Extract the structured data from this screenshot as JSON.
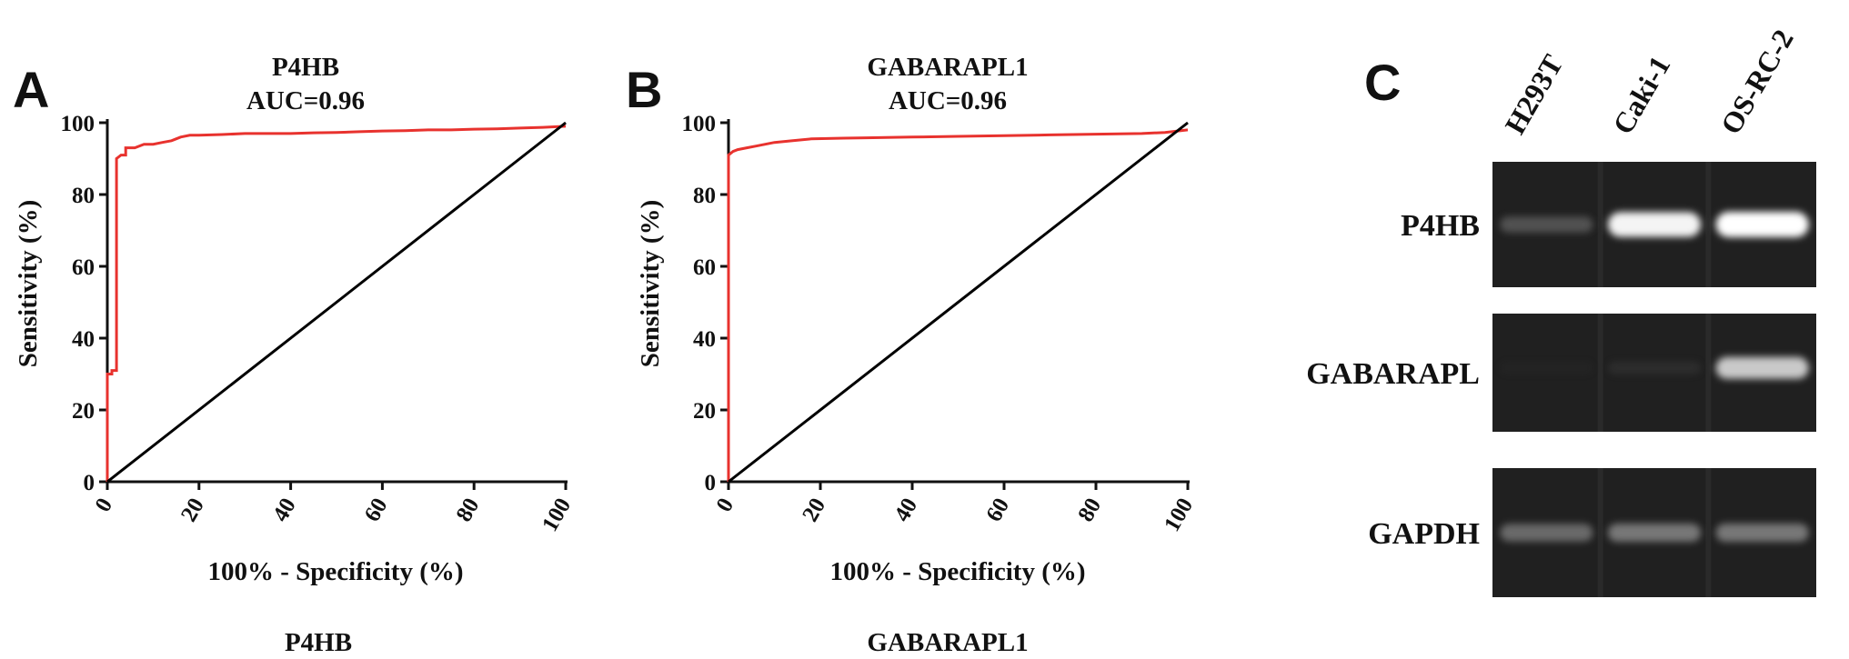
{
  "panels": {
    "a_letter": "A",
    "b_letter": "B",
    "c_letter": "C"
  },
  "chart_data": [
    {
      "type": "line",
      "title": "P4HB",
      "subtitle": "AUC=0.96",
      "caption": "P4HB",
      "xlabel": "100% - Specificity (%)",
      "ylabel": "Sensitivity (%)",
      "xlim": [
        0,
        100
      ],
      "ylim": [
        0,
        100
      ],
      "xticks": [
        "0",
        "20",
        "40",
        "60",
        "80",
        "100"
      ],
      "yticks": [
        "0",
        "20",
        "40",
        "60",
        "80",
        "100"
      ],
      "grid": false,
      "series": [
        {
          "color": "#e8322e",
          "x": [
            0,
            0,
            1,
            1,
            1.5,
            2,
            2,
            3,
            4,
            4,
            6,
            8,
            10,
            12,
            14,
            15,
            16,
            18,
            20,
            25,
            30,
            35,
            40,
            45,
            50,
            55,
            60,
            65,
            70,
            75,
            80,
            85,
            90,
            95,
            100
          ],
          "y": [
            0,
            30,
            30,
            31,
            31,
            31,
            90,
            91,
            91,
            93,
            93,
            94,
            94,
            94.5,
            95,
            95.5,
            96,
            96.5,
            96.5,
            96.7,
            97,
            97,
            97,
            97.2,
            97.3,
            97.5,
            97.7,
            97.8,
            98,
            98,
            98.2,
            98.3,
            98.5,
            98.7,
            99
          ]
        },
        {
          "color": "#000000",
          "x": [
            0,
            100
          ],
          "y": [
            0,
            100
          ]
        }
      ]
    },
    {
      "type": "line",
      "title": "GABARAPL1",
      "subtitle": "AUC=0.96",
      "caption": "GABARAPL1",
      "xlabel": "100% - Specificity (%)",
      "ylabel": "Sensitivity (%)",
      "xlim": [
        0,
        100
      ],
      "ylim": [
        0,
        100
      ],
      "xticks": [
        "0",
        "20",
        "40",
        "60",
        "80",
        "100"
      ],
      "yticks": [
        "0",
        "20",
        "40",
        "60",
        "80",
        "100"
      ],
      "grid": false,
      "series": [
        {
          "color": "#e8322e",
          "x": [
            0,
            0,
            1,
            2,
            4,
            6,
            8,
            10,
            14,
            18,
            25,
            30,
            40,
            50,
            60,
            70,
            80,
            90,
            95,
            100
          ],
          "y": [
            0,
            91,
            92,
            92.5,
            93,
            93.5,
            94,
            94.5,
            95,
            95.5,
            95.7,
            95.8,
            96,
            96.2,
            96.4,
            96.6,
            96.8,
            97,
            97.3,
            98
          ]
        },
        {
          "color": "#000000",
          "x": [
            0,
            100
          ],
          "y": [
            0,
            100
          ]
        }
      ]
    }
  ],
  "gel": {
    "lanes": [
      "H293T",
      "Caki-1",
      "OS-RC-2"
    ],
    "rows": [
      {
        "label": "P4HB",
        "band_intensity": [
          0.35,
          0.95,
          1.0
        ]
      },
      {
        "label": "GABARAPL",
        "band_intensity": [
          0.03,
          0.12,
          0.75
        ]
      },
      {
        "label": "GAPDH",
        "band_intensity": [
          0.45,
          0.5,
          0.5
        ]
      }
    ]
  }
}
